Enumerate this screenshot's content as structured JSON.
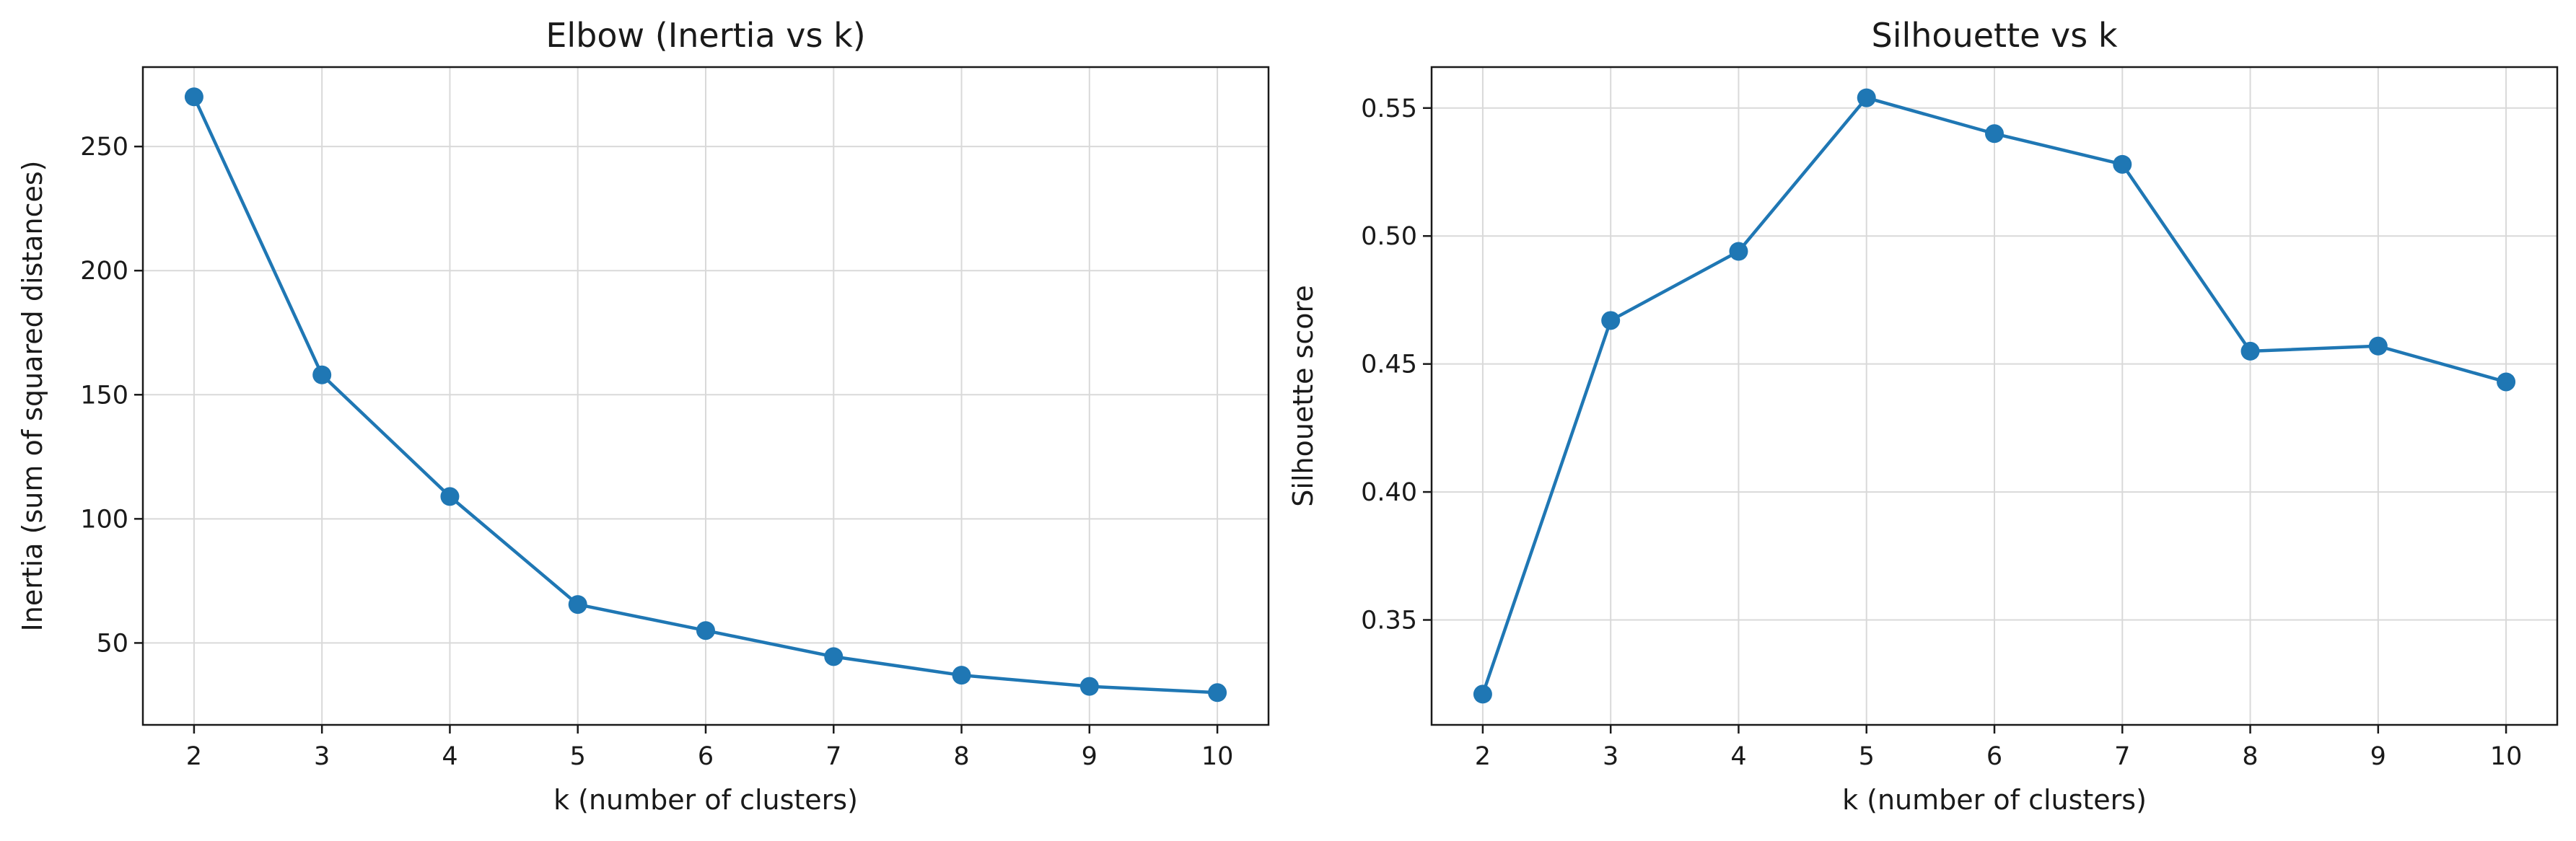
{
  "chart_data": [
    {
      "type": "line",
      "title": "Elbow (Inertia vs k)",
      "xlabel": "k (number of clusters)",
      "ylabel": "Inertia (sum of squared distances)",
      "x": [
        2,
        3,
        4,
        5,
        6,
        7,
        8,
        9,
        10
      ],
      "series": [
        {
          "values": [
            270,
            158,
            109,
            65.5,
            55,
            44.5,
            37,
            32.5,
            30
          ]
        }
      ],
      "xlim": [
        1.6,
        10.4
      ],
      "ylim": [
        17,
        282
      ],
      "xticks": [
        2,
        3,
        4,
        5,
        6,
        7,
        8,
        9,
        10
      ],
      "yticks": [
        50,
        100,
        150,
        200,
        250
      ],
      "grid": true,
      "color": "#1f77b4"
    },
    {
      "type": "line",
      "title": "Silhouette vs k",
      "xlabel": "k (number of clusters)",
      "ylabel": "Silhouette score",
      "x": [
        2,
        3,
        4,
        5,
        6,
        7,
        8,
        9,
        10
      ],
      "series": [
        {
          "values": [
            0.321,
            0.467,
            0.494,
            0.554,
            0.54,
            0.528,
            0.455,
            0.457,
            0.443
          ]
        }
      ],
      "xlim": [
        1.6,
        10.4
      ],
      "ylim": [
        0.309,
        0.566
      ],
      "xticks": [
        2,
        3,
        4,
        5,
        6,
        7,
        8,
        9,
        10
      ],
      "yticks": [
        0.35,
        0.4,
        0.45,
        0.5,
        0.55
      ],
      "ytick_decimals": 2,
      "grid": true,
      "color": "#1f77b4"
    }
  ]
}
